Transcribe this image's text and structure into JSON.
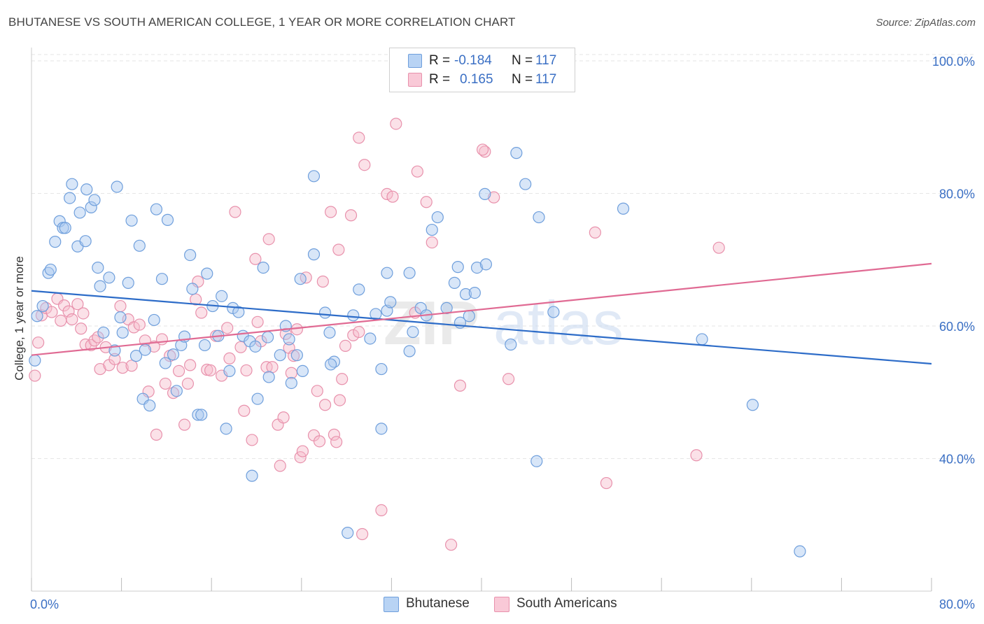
{
  "title": "BHUTANESE VS SOUTH AMERICAN COLLEGE, 1 YEAR OR MORE CORRELATION CHART",
  "source": "Source: ZipAtlas.com",
  "watermark": "ZIPatlas",
  "colors": {
    "blue_fill": "#a9c8f0",
    "blue_stroke": "#6f9fdc",
    "blue_line": "#2d6cc8",
    "pink_fill": "#f7bccd",
    "pink_stroke": "#e891ac",
    "pink_line": "#e06a93",
    "axis_text": "#3a6fc4",
    "grid": "#e6e6e6"
  },
  "legend": [
    {
      "r_label": "R =",
      "r_value": "-0.184",
      "n_label": "N =",
      "n_value": "117"
    },
    {
      "r_label": "R =",
      "r_value": "0.165",
      "n_label": "N =",
      "n_value": "117"
    }
  ],
  "bottom_legend": [
    "Bhutanese",
    "South Americans"
  ],
  "chart_data": {
    "type": "scatter",
    "title": "BHUTANESE VS SOUTH AMERICAN COLLEGE, 1 YEAR OR MORE CORRELATION CHART",
    "xlabel": "",
    "ylabel": "College, 1 year or more",
    "xlim": [
      0,
      80
    ],
    "ylim": [
      20,
      102
    ],
    "x_tick_labels": [
      "0.0%",
      "80.0%"
    ],
    "y_tick_labels": [
      "100.0%",
      "80.0%",
      "60.0%",
      "40.0%"
    ],
    "y_ticks": [
      100,
      80,
      60,
      40
    ],
    "grid": true,
    "legend_position": "top-center",
    "series": [
      {
        "name": "Bhutanese",
        "r": -0.184,
        "n": 117,
        "trend": {
          "x": [
            0,
            80
          ],
          "y": [
            65.3,
            54.3
          ]
        },
        "points": [
          [
            0.3,
            54.8
          ],
          [
            0.5,
            61.5
          ],
          [
            1.0,
            63.0
          ],
          [
            1.5,
            68.0
          ],
          [
            1.7,
            68.5
          ],
          [
            2.1,
            72.7
          ],
          [
            2.5,
            75.8
          ],
          [
            2.8,
            74.8
          ],
          [
            3.0,
            74.8
          ],
          [
            3.4,
            79.3
          ],
          [
            3.6,
            81.4
          ],
          [
            4.1,
            72.0
          ],
          [
            4.3,
            77.1
          ],
          [
            4.8,
            72.8
          ],
          [
            4.9,
            80.6
          ],
          [
            5.3,
            77.9
          ],
          [
            5.6,
            79.0
          ],
          [
            5.9,
            68.8
          ],
          [
            6.1,
            66.0
          ],
          [
            6.4,
            59.0
          ],
          [
            6.9,
            67.3
          ],
          [
            7.4,
            56.3
          ],
          [
            7.6,
            81.0
          ],
          [
            7.9,
            61.3
          ],
          [
            8.1,
            59.0
          ],
          [
            8.6,
            66.5
          ],
          [
            8.9,
            75.9
          ],
          [
            9.3,
            55.5
          ],
          [
            9.6,
            72.1
          ],
          [
            9.9,
            49.0
          ],
          [
            10.1,
            56.4
          ],
          [
            10.5,
            48.0
          ],
          [
            10.9,
            60.9
          ],
          [
            11.1,
            77.6
          ],
          [
            11.6,
            67.1
          ],
          [
            11.9,
            54.4
          ],
          [
            12.1,
            76.0
          ],
          [
            12.6,
            55.7
          ],
          [
            12.9,
            50.2
          ],
          [
            13.3,
            57.1
          ],
          [
            13.6,
            58.4
          ],
          [
            14.1,
            70.7
          ],
          [
            14.3,
            65.6
          ],
          [
            14.8,
            46.6
          ],
          [
            15.1,
            46.6
          ],
          [
            15.4,
            57.1
          ],
          [
            15.6,
            67.9
          ],
          [
            16.1,
            63.0
          ],
          [
            16.6,
            58.5
          ],
          [
            16.9,
            64.5
          ],
          [
            17.3,
            44.5
          ],
          [
            17.6,
            53.2
          ],
          [
            17.9,
            62.7
          ],
          [
            18.4,
            62.1
          ],
          [
            18.8,
            58.5
          ],
          [
            19.4,
            57.7
          ],
          [
            19.6,
            37.4
          ],
          [
            19.9,
            56.9
          ],
          [
            20.1,
            49.0
          ],
          [
            20.6,
            68.8
          ],
          [
            21.0,
            58.3
          ],
          [
            21.1,
            52.3
          ],
          [
            22.1,
            55.6
          ],
          [
            22.6,
            60.0
          ],
          [
            22.9,
            58.0
          ],
          [
            23.1,
            51.4
          ],
          [
            23.6,
            55.6
          ],
          [
            23.9,
            67.1
          ],
          [
            24.1,
            53.2
          ],
          [
            25.1,
            82.6
          ],
          [
            25.1,
            70.8
          ],
          [
            26.1,
            62.0
          ],
          [
            26.5,
            59.0
          ],
          [
            26.9,
            54.6
          ],
          [
            26.6,
            54.2
          ],
          [
            28.1,
            28.8
          ],
          [
            28.6,
            61.6
          ],
          [
            29.1,
            65.5
          ],
          [
            30.1,
            58.1
          ],
          [
            30.6,
            61.8
          ],
          [
            31.1,
            44.5
          ],
          [
            31.1,
            53.5
          ],
          [
            31.6,
            68.0
          ],
          [
            31.6,
            62.3
          ],
          [
            31.9,
            63.6
          ],
          [
            33.6,
            68.0
          ],
          [
            33.6,
            56.2
          ],
          [
            33.9,
            59.1
          ],
          [
            34.6,
            62.7
          ],
          [
            35.1,
            61.6
          ],
          [
            35.6,
            74.5
          ],
          [
            36.1,
            76.4
          ],
          [
            36.9,
            62.7
          ],
          [
            37.6,
            66.5
          ],
          [
            37.9,
            68.9
          ],
          [
            38.1,
            60.5
          ],
          [
            38.6,
            64.8
          ],
          [
            38.9,
            61.5
          ],
          [
            39.4,
            65.0
          ],
          [
            39.6,
            68.8
          ],
          [
            40.4,
            69.3
          ],
          [
            40.3,
            79.9
          ],
          [
            42.6,
            57.2
          ],
          [
            43.1,
            86.1
          ],
          [
            43.9,
            81.4
          ],
          [
            44.9,
            39.6
          ],
          [
            45.1,
            76.4
          ],
          [
            46.4,
            62.1
          ],
          [
            52.6,
            77.7
          ],
          [
            59.6,
            58.0
          ],
          [
            64.1,
            48.1
          ],
          [
            68.3,
            26.0
          ]
        ]
      },
      {
        "name": "South Americans",
        "r": 0.165,
        "n": 117,
        "trend": {
          "x": [
            0,
            80
          ],
          "y": [
            55.6,
            69.4
          ]
        },
        "points": [
          [
            0.3,
            52.5
          ],
          [
            0.6,
            57.5
          ],
          [
            0.9,
            61.6
          ],
          [
            1.3,
            62.7
          ],
          [
            1.8,
            62.1
          ],
          [
            2.3,
            64.1
          ],
          [
            2.6,
            60.8
          ],
          [
            2.9,
            63.1
          ],
          [
            3.3,
            62.2
          ],
          [
            3.6,
            61.0
          ],
          [
            4.1,
            63.3
          ],
          [
            4.4,
            59.6
          ],
          [
            4.6,
            61.9
          ],
          [
            4.8,
            57.2
          ],
          [
            5.3,
            57.1
          ],
          [
            5.6,
            57.8
          ],
          [
            5.9,
            58.3
          ],
          [
            6.1,
            53.5
          ],
          [
            6.6,
            56.8
          ],
          [
            6.9,
            54.1
          ],
          [
            7.4,
            55.0
          ],
          [
            7.9,
            63.0
          ],
          [
            8.1,
            53.7
          ],
          [
            8.6,
            61.0
          ],
          [
            8.9,
            54.0
          ],
          [
            9.1,
            59.8
          ],
          [
            9.6,
            60.2
          ],
          [
            10.1,
            57.8
          ],
          [
            10.4,
            50.1
          ],
          [
            10.9,
            56.9
          ],
          [
            11.1,
            43.6
          ],
          [
            11.6,
            58.0
          ],
          [
            11.9,
            51.3
          ],
          [
            12.3,
            55.5
          ],
          [
            12.6,
            49.9
          ],
          [
            13.1,
            53.2
          ],
          [
            13.6,
            45.1
          ],
          [
            13.9,
            51.3
          ],
          [
            14.1,
            54.1
          ],
          [
            14.6,
            64.0
          ],
          [
            14.8,
            66.7
          ],
          [
            15.1,
            62.0
          ],
          [
            15.6,
            53.4
          ],
          [
            15.9,
            53.3
          ],
          [
            16.4,
            58.5
          ],
          [
            16.9,
            52.5
          ],
          [
            17.4,
            59.7
          ],
          [
            17.6,
            55.1
          ],
          [
            18.1,
            77.2
          ],
          [
            18.6,
            56.8
          ],
          [
            18.9,
            47.2
          ],
          [
            19.1,
            53.3
          ],
          [
            19.6,
            42.8
          ],
          [
            19.9,
            70.1
          ],
          [
            20.1,
            60.6
          ],
          [
            20.4,
            57.7
          ],
          [
            20.9,
            53.8
          ],
          [
            21.1,
            73.1
          ],
          [
            21.4,
            53.8
          ],
          [
            21.9,
            45.1
          ],
          [
            22.1,
            38.9
          ],
          [
            22.4,
            46.2
          ],
          [
            22.6,
            58.8
          ],
          [
            22.9,
            56.7
          ],
          [
            23.1,
            52.9
          ],
          [
            23.3,
            55.5
          ],
          [
            23.6,
            59.5
          ],
          [
            23.9,
            40.2
          ],
          [
            24.1,
            41.1
          ],
          [
            24.4,
            67.3
          ],
          [
            25.1,
            43.5
          ],
          [
            25.4,
            50.2
          ],
          [
            25.6,
            42.6
          ],
          [
            25.9,
            66.7
          ],
          [
            26.1,
            48.1
          ],
          [
            26.6,
            77.2
          ],
          [
            26.9,
            43.6
          ],
          [
            27.1,
            42.5
          ],
          [
            27.4,
            48.8
          ],
          [
            27.6,
            52.0
          ],
          [
            27.9,
            57.0
          ],
          [
            27.3,
            71.5
          ],
          [
            28.4,
            76.7
          ],
          [
            28.6,
            58.6
          ],
          [
            29.1,
            88.4
          ],
          [
            29.1,
            59.1
          ],
          [
            29.6,
            84.3
          ],
          [
            29.4,
            28.6
          ],
          [
            31.1,
            32.2
          ],
          [
            31.6,
            79.9
          ],
          [
            32.1,
            79.5
          ],
          [
            32.4,
            90.5
          ],
          [
            34.1,
            62.0
          ],
          [
            34.3,
            83.3
          ],
          [
            35.1,
            78.7
          ],
          [
            35.6,
            72.6
          ],
          [
            37.3,
            27.0
          ],
          [
            38.1,
            51.0
          ],
          [
            40.3,
            86.3
          ],
          [
            40.1,
            86.6
          ],
          [
            41.1,
            79.4
          ],
          [
            42.4,
            52.0
          ],
          [
            50.1,
            74.1
          ],
          [
            51.1,
            36.3
          ],
          [
            59.1,
            40.5
          ],
          [
            61.1,
            71.8
          ]
        ]
      }
    ]
  }
}
